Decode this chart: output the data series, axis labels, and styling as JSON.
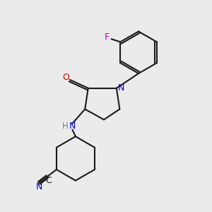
{
  "background_color": "#ebebeb",
  "bond_color": "#1a1a1a",
  "atom_colors": {
    "N": "#0000cc",
    "O": "#cc0000",
    "F": "#cc00aa",
    "C_label": "#1a1a1a",
    "H": "#4a9090"
  },
  "figsize": [
    3.0,
    3.0
  ],
  "dpi": 100
}
